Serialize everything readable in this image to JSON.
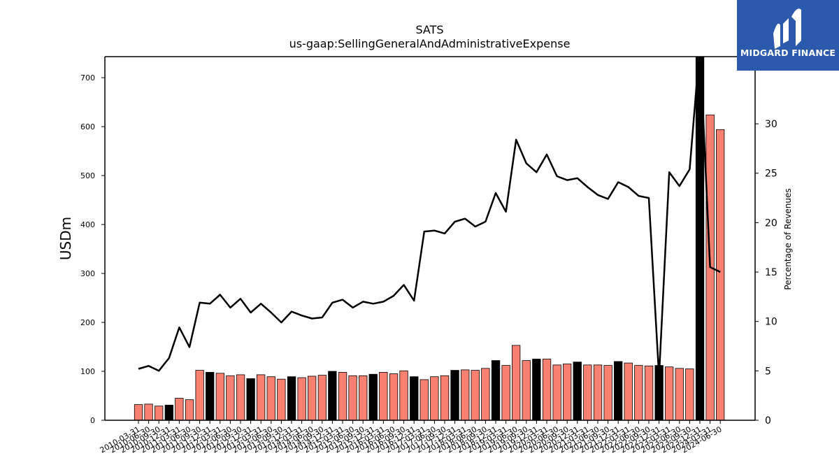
{
  "brand": {
    "name": "MIDGARD FINANCE",
    "bg": "#2b5aad"
  },
  "chart_data": {
    "type": "bar",
    "title": "SATS",
    "subtitle": "us-gaap:SellingGeneralAndAdministrativeExpense",
    "ylabel": "USDm",
    "y2label": "Percentage of Revenues",
    "ylim": [
      0,
      743
    ],
    "y2lim": [
      0,
      36.8
    ],
    "yticks": [
      0,
      100,
      200,
      300,
      400,
      500,
      600,
      700
    ],
    "y2ticks": [
      0,
      5,
      10,
      15,
      20,
      25,
      30
    ],
    "bar_colors": {
      "quarter": "#fa8072",
      "fiscal_year_end": "#000000"
    },
    "categories": [
      "2010-03-31",
      "2010-06-30",
      "2010-09-30",
      "2010-12-31",
      "2011-03-31",
      "2011-06-30",
      "2011-09-30",
      "2011-12-31",
      "2012-03-31",
      "2012-06-30",
      "2012-09-30",
      "2012-12-31",
      "2013-03-31",
      "2013-06-30",
      "2013-09-30",
      "2013-12-31",
      "2014-03-31",
      "2014-06-30",
      "2014-09-30",
      "2014-12-31",
      "2015-03-31",
      "2015-06-30",
      "2015-09-30",
      "2015-12-31",
      "2016-03-31",
      "2016-06-30",
      "2016-09-30",
      "2016-12-31",
      "2017-03-31",
      "2017-06-30",
      "2017-09-30",
      "2017-12-31",
      "2018-03-31",
      "2018-06-30",
      "2018-09-30",
      "2018-12-31",
      "2019-03-31",
      "2019-06-30",
      "2019-09-30",
      "2019-12-31",
      "2020-03-31",
      "2020-06-30",
      "2020-09-30",
      "2020-12-31",
      "2021-03-31",
      "2021-06-30",
      "2021-09-30",
      "2021-12-31",
      "2022-03-31",
      "2022-06-30",
      "2022-09-30",
      "2022-12-31",
      "2023-03-31",
      "2023-06-30",
      "2023-09-30",
      "2023-12-31",
      "2024-03-31",
      "2024-06-30"
    ],
    "series": [
      {
        "type": "bar",
        "values": [
          32,
          33,
          29,
          31,
          45,
          42,
          102,
          98,
          96,
          91,
          93,
          85,
          93,
          89,
          84,
          89,
          87,
          90,
          92,
          100,
          98,
          91,
          91,
          94,
          98,
          95,
          101,
          89,
          83,
          89,
          91,
          102,
          103,
          102,
          106,
          122,
          112,
          153,
          122,
          125,
          125,
          113,
          115,
          119,
          113,
          113,
          112,
          120,
          117,
          112,
          111,
          112,
          109,
          106,
          105,
          743,
          624,
          594
        ],
        "fiscal_year_end": [
          false,
          false,
          false,
          true,
          false,
          false,
          false,
          true,
          false,
          false,
          false,
          true,
          false,
          false,
          false,
          true,
          false,
          false,
          false,
          true,
          false,
          false,
          false,
          true,
          false,
          false,
          false,
          true,
          false,
          false,
          false,
          true,
          false,
          false,
          false,
          true,
          false,
          false,
          false,
          true,
          false,
          false,
          false,
          true,
          false,
          false,
          false,
          true,
          false,
          false,
          false,
          true,
          false,
          false,
          false,
          true,
          false,
          false
        ]
      },
      {
        "type": "line",
        "axis": "right",
        "color": "#000000",
        "values": [
          5.2,
          5.5,
          5.0,
          6.3,
          9.4,
          7.4,
          11.9,
          11.8,
          12.7,
          11.4,
          12.3,
          10.9,
          11.8,
          10.9,
          9.9,
          11.0,
          10.6,
          10.3,
          10.4,
          11.9,
          12.2,
          11.4,
          12.0,
          11.8,
          12.0,
          12.6,
          13.7,
          12.1,
          19.1,
          19.2,
          18.9,
          20.1,
          20.4,
          19.6,
          20.1,
          23.0,
          21.1,
          28.4,
          26.0,
          25.1,
          26.9,
          24.7,
          24.3,
          24.5,
          23.6,
          22.8,
          22.4,
          24.1,
          23.6,
          22.7,
          22.5,
          4.4,
          25.1,
          23.7,
          25.4,
          38.0,
          15.5,
          15.0
        ]
      }
    ]
  }
}
